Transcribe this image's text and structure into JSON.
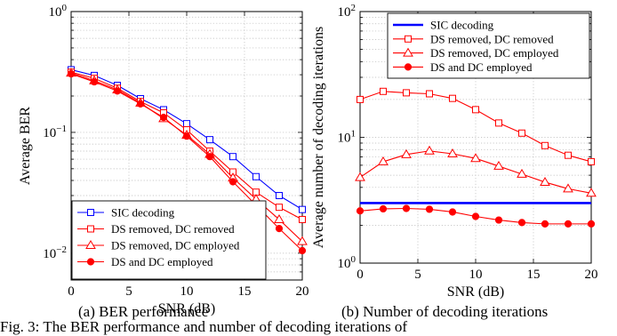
{
  "caption_a": "(a) BER performance",
  "caption_b": "(b) Number of decoding iterations",
  "figure_caption": "Fig. 3: The BER performance and number of decoding iterations of",
  "chart_data": [
    {
      "type": "line",
      "xlabel": "SNR (dB)",
      "ylabel": "Average BER",
      "xlim": [
        0,
        20
      ],
      "ylim": [
        0.006,
        1
      ],
      "yscale": "log",
      "grid": true,
      "legend_position": "bottom-left",
      "x_ticks": [
        0,
        5,
        10,
        15,
        20
      ],
      "y_ticks": [
        {
          "value": 1,
          "label": "10^0"
        },
        {
          "value": 0.1,
          "label": "10^-1"
        },
        {
          "value": 0.01,
          "label": "10^-2"
        }
      ],
      "x": [
        0,
        2,
        4,
        6,
        8,
        10,
        12,
        14,
        16,
        18,
        20
      ],
      "series": [
        {
          "name": "SIC decoding",
          "color": "#0000ff",
          "marker": "square",
          "values": [
            0.33,
            0.296,
            0.245,
            0.19,
            0.154,
            0.118,
            0.087,
            0.063,
            0.043,
            0.03,
            0.023
          ]
        },
        {
          "name": "DS removed, DC removed",
          "color": "#ff0000",
          "marker": "square",
          "values": [
            0.315,
            0.28,
            0.232,
            0.18,
            0.145,
            0.105,
            0.07,
            0.047,
            0.032,
            0.024,
            0.019
          ]
        },
        {
          "name": "DS removed, DC employed",
          "color": "#ff0000",
          "marker": "triangle",
          "values": [
            0.31,
            0.268,
            0.225,
            0.175,
            0.13,
            0.095,
            0.066,
            0.042,
            0.028,
            0.019,
            0.0125
          ]
        },
        {
          "name": "DS and DC employed",
          "color": "#ff0000",
          "marker": "circle",
          "values": [
            0.305,
            0.262,
            0.22,
            0.172,
            0.133,
            0.093,
            0.063,
            0.039,
            0.025,
            0.016,
            0.0105
          ]
        }
      ]
    },
    {
      "type": "line",
      "xlabel": "SNR (dB)",
      "ylabel": "Average number of decoding iterations",
      "xlim": [
        0,
        20
      ],
      "ylim": [
        1,
        100
      ],
      "yscale": "log",
      "grid": true,
      "legend_position": "top-right",
      "x_ticks": [
        0,
        5,
        10,
        15,
        20
      ],
      "y_ticks": [
        {
          "value": 100,
          "label": "10^2"
        },
        {
          "value": 10,
          "label": "10^1"
        },
        {
          "value": 1,
          "label": "10^0"
        }
      ],
      "x": [
        0,
        2,
        4,
        6,
        8,
        10,
        12,
        14,
        16,
        18,
        20
      ],
      "series": [
        {
          "name": "SIC decoding",
          "color": "#0000ff",
          "marker": "none",
          "values": [
            3,
            3,
            3,
            3,
            3,
            3,
            3,
            3,
            3,
            3,
            3
          ]
        },
        {
          "name": "DS removed, DC removed",
          "color": "#ff0000",
          "marker": "square",
          "values": [
            20,
            23.2,
            22.6,
            22.2,
            20.4,
            16.6,
            13,
            10.8,
            8.6,
            7.2,
            6.4
          ]
        },
        {
          "name": "DS removed, DC employed",
          "color": "#ff0000",
          "marker": "triangle",
          "values": [
            4.8,
            6.4,
            7.3,
            7.8,
            7.4,
            6.8,
            5.9,
            5.1,
            4.4,
            3.9,
            3.6
          ]
        },
        {
          "name": "DS and DC employed",
          "color": "#ff0000",
          "marker": "circle",
          "values": [
            2.6,
            2.7,
            2.72,
            2.68,
            2.55,
            2.35,
            2.2,
            2.1,
            2.05,
            2.05,
            2.05
          ]
        }
      ]
    }
  ]
}
